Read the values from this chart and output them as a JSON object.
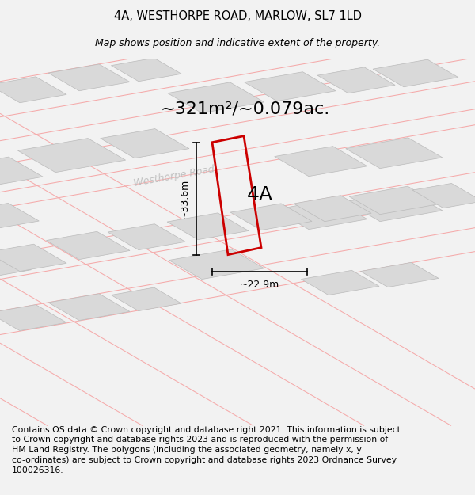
{
  "title": "4A, WESTHORPE ROAD, MARLOW, SL7 1LD",
  "subtitle": "Map shows position and indicative extent of the property.",
  "area_text": "~321m²/~0.079ac.",
  "label_4a": "4A",
  "dim_width": "~22.9m",
  "dim_height": "~33.6m",
  "road_label": "Westhorpe Road",
  "footer_line1": "Contains OS data © Crown copyright and database right 2021. This information is subject",
  "footer_line2": "to Crown copyright and database rights 2023 and is reproduced with the permission of",
  "footer_line3": "HM Land Registry. The polygons (including the associated geometry, namely x, y",
  "footer_line4": "co-ordinates) are subject to Crown copyright and database rights 2023 Ordnance Survey",
  "footer_line5": "100026316.",
  "bg_color": "#f2f2f2",
  "map_bg": "#ffffff",
  "building_color": "#d9d9d9",
  "building_edge_color": "#bbbbbb",
  "road_line_color": "#f5aaaa",
  "property_color": "#cc0000",
  "title_fontsize": 10.5,
  "subtitle_fontsize": 9,
  "area_fontsize": 16,
  "label_fontsize": 18,
  "dim_fontsize": 9,
  "road_label_fontsize": 9,
  "footer_fontsize": 7.8
}
